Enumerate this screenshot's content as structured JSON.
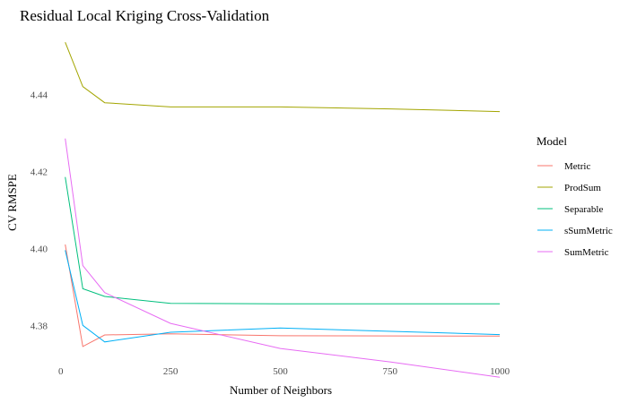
{
  "chart_data": {
    "type": "line",
    "title": "Residual Local Kriging Cross-Validation",
    "xlabel": "Number of Neighbors",
    "ylabel": "CV RMSPE",
    "xlim": [
      -20,
      1010
    ],
    "ylim": [
      4.3703,
      4.4575
    ],
    "xticks": [
      0,
      250,
      500,
      750,
      1000
    ],
    "yticks": [
      4.38,
      4.4,
      4.42,
      4.44
    ],
    "ytick_labels": [
      "4.38",
      "4.40",
      "4.42",
      "4.44"
    ],
    "grid": false,
    "legend": {
      "title": "Model",
      "placement": "right"
    },
    "series": [
      {
        "name": "Metric",
        "color": "#F8766D",
        "x": [
          10,
          50,
          100,
          250,
          500,
          1000
        ],
        "y": [
          4.401,
          4.3745,
          4.3775,
          4.3778,
          4.3773,
          4.3772
        ]
      },
      {
        "name": "ProdSum",
        "color": "#A3A500",
        "x": [
          10,
          50,
          100,
          250,
          500,
          750,
          1000
        ],
        "y": [
          4.4535,
          4.442,
          4.4378,
          4.4367,
          4.4367,
          4.4362,
          4.4355
        ]
      },
      {
        "name": "Separable",
        "color": "#00BF7D",
        "x": [
          10,
          50,
          100,
          250,
          500,
          1000
        ],
        "y": [
          4.4185,
          4.3895,
          4.3875,
          4.3857,
          4.3856,
          4.3856
        ]
      },
      {
        "name": "sSumMetric",
        "color": "#00B0F6",
        "x": [
          10,
          50,
          100,
          250,
          500,
          1000
        ],
        "y": [
          4.3995,
          4.38,
          4.3757,
          4.3782,
          4.3793,
          4.3776
        ]
      },
      {
        "name": "SumMetric",
        "color": "#E76BF3",
        "x": [
          10,
          50,
          100,
          250,
          500,
          750,
          1000
        ],
        "y": [
          4.4285,
          4.3955,
          4.3885,
          4.3805,
          4.374,
          4.3705,
          4.3665
        ]
      }
    ]
  }
}
